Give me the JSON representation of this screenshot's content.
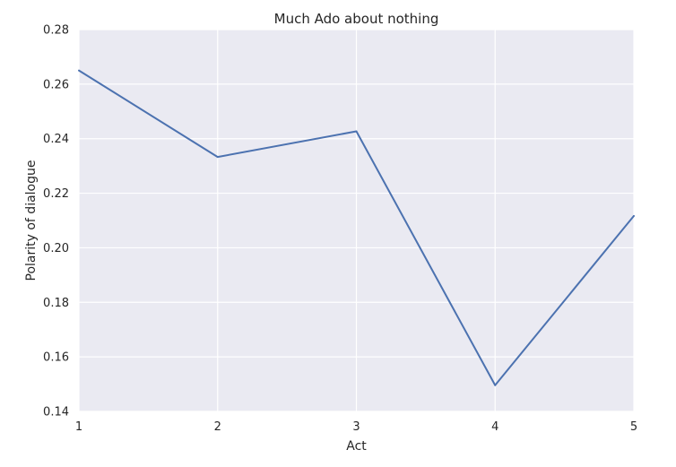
{
  "chart_data": {
    "type": "line",
    "title": "Much Ado about nothing",
    "xlabel": "Act",
    "ylabel": "Polarity of dialogue",
    "x": [
      1,
      2,
      3,
      4,
      5
    ],
    "series": [
      {
        "values": [
          0.265,
          0.2333,
          0.2427,
          0.1496,
          0.2117
        ]
      }
    ],
    "xlim": [
      1,
      5
    ],
    "ylim": [
      0.14,
      0.28
    ],
    "xticks": [
      "1",
      "2",
      "3",
      "4",
      "5"
    ],
    "yticks": [
      "0.14",
      "0.16",
      "0.18",
      "0.20",
      "0.22",
      "0.24",
      "0.26",
      "0.28"
    ],
    "grid": true,
    "colors": {
      "background": "#eaeaf2",
      "grid": "#ffffff",
      "line": "#4c72b0"
    }
  }
}
